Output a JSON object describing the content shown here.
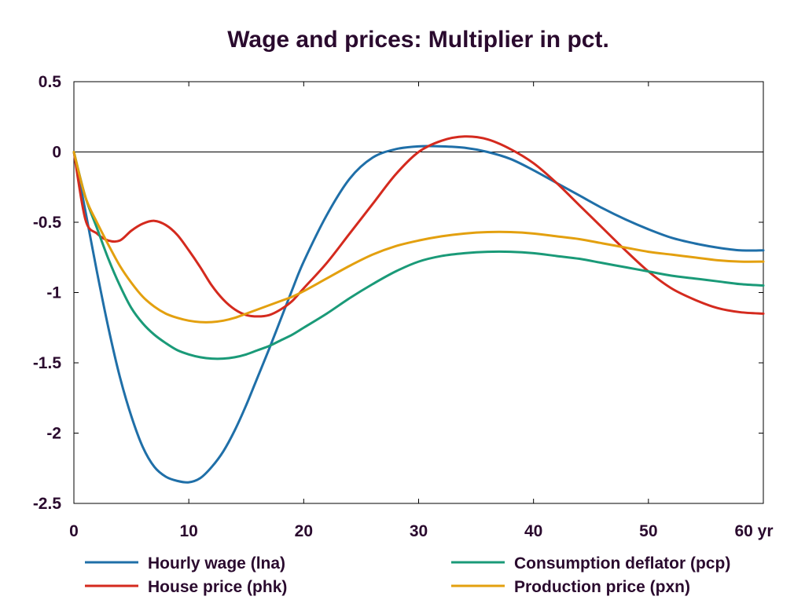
{
  "chart_data": {
    "type": "line",
    "title": "Wage and prices: Multiplier in pct.",
    "x_unit": "yr",
    "xlim": [
      0,
      60
    ],
    "ylim": [
      -2.5,
      0.5
    ],
    "x_ticks": [
      0,
      10,
      20,
      30,
      40,
      50,
      60
    ],
    "x_tick_labels": [
      "0",
      "10",
      "20",
      "30",
      "40",
      "50",
      "60 yr"
    ],
    "y_ticks": [
      0.5,
      0,
      -0.5,
      -1,
      -1.5,
      -2,
      -2.5
    ],
    "y_tick_labels": [
      "0.5",
      "0",
      "-0.5",
      "-1",
      "-1.5",
      "-2",
      "-2.5"
    ],
    "grid": false,
    "zero_line": true,
    "legend_position": "bottom",
    "series": [
      {
        "name": "Hourly wage (lna)",
        "color": "#1f6fa8",
        "x": [
          0,
          1,
          2,
          3,
          4,
          5,
          6,
          7,
          8,
          9,
          10,
          11,
          12,
          13,
          14,
          15,
          16,
          17,
          18,
          19,
          20,
          22,
          24,
          26,
          28,
          30,
          32,
          34,
          36,
          38,
          40,
          42,
          44,
          46,
          48,
          50,
          52,
          54,
          56,
          58,
          60
        ],
        "values": [
          0,
          -0.42,
          -0.85,
          -1.25,
          -1.6,
          -1.88,
          -2.1,
          -2.24,
          -2.31,
          -2.34,
          -2.35,
          -2.32,
          -2.24,
          -2.13,
          -1.98,
          -1.8,
          -1.6,
          -1.4,
          -1.19,
          -0.98,
          -0.78,
          -0.45,
          -0.19,
          -0.04,
          0.02,
          0.04,
          0.04,
          0.03,
          0.0,
          -0.05,
          -0.13,
          -0.22,
          -0.31,
          -0.4,
          -0.48,
          -0.55,
          -0.61,
          -0.65,
          -0.68,
          -0.7,
          -0.7
        ]
      },
      {
        "name": "House price (phk)",
        "color": "#d42a1e",
        "x": [
          0,
          1,
          2,
          3,
          4,
          5,
          6,
          7,
          8,
          9,
          10,
          11,
          12,
          13,
          14,
          15,
          16,
          17,
          18,
          19,
          20,
          22,
          24,
          26,
          28,
          30,
          32,
          34,
          36,
          38,
          40,
          42,
          44,
          46,
          48,
          50,
          52,
          54,
          56,
          58,
          60
        ],
        "values": [
          0,
          -0.48,
          -0.58,
          -0.63,
          -0.63,
          -0.56,
          -0.51,
          -0.49,
          -0.52,
          -0.59,
          -0.7,
          -0.82,
          -0.95,
          -1.05,
          -1.12,
          -1.16,
          -1.17,
          -1.16,
          -1.12,
          -1.06,
          -0.97,
          -0.79,
          -0.58,
          -0.37,
          -0.16,
          0.0,
          0.08,
          0.11,
          0.09,
          0.02,
          -0.08,
          -0.22,
          -0.38,
          -0.54,
          -0.7,
          -0.85,
          -0.97,
          -1.05,
          -1.11,
          -1.14,
          -1.15
        ]
      },
      {
        "name": "Consumption deflator (pcp)",
        "color": "#1a9a78",
        "x": [
          0,
          1,
          2,
          3,
          4,
          5,
          6,
          7,
          8,
          9,
          10,
          11,
          12,
          13,
          14,
          15,
          16,
          17,
          18,
          19,
          20,
          22,
          24,
          26,
          28,
          30,
          32,
          34,
          36,
          38,
          40,
          42,
          44,
          46,
          48,
          50,
          52,
          54,
          56,
          58,
          60
        ],
        "values": [
          0,
          -0.32,
          -0.54,
          -0.76,
          -0.95,
          -1.11,
          -1.22,
          -1.3,
          -1.36,
          -1.41,
          -1.44,
          -1.46,
          -1.47,
          -1.47,
          -1.46,
          -1.44,
          -1.41,
          -1.38,
          -1.34,
          -1.3,
          -1.25,
          -1.15,
          -1.04,
          -0.94,
          -0.85,
          -0.78,
          -0.74,
          -0.72,
          -0.71,
          -0.71,
          -0.72,
          -0.74,
          -0.76,
          -0.79,
          -0.82,
          -0.85,
          -0.88,
          -0.9,
          -0.92,
          -0.94,
          -0.95
        ]
      },
      {
        "name": "Production price (pxn)",
        "color": "#e3a00f",
        "x": [
          0,
          1,
          2,
          3,
          4,
          5,
          6,
          7,
          8,
          9,
          10,
          11,
          12,
          13,
          14,
          15,
          16,
          17,
          18,
          19,
          20,
          22,
          24,
          26,
          28,
          30,
          32,
          34,
          36,
          38,
          40,
          42,
          44,
          46,
          48,
          50,
          52,
          54,
          56,
          58,
          60
        ],
        "values": [
          0,
          -0.32,
          -0.5,
          -0.66,
          -0.81,
          -0.93,
          -1.03,
          -1.1,
          -1.15,
          -1.18,
          -1.2,
          -1.21,
          -1.21,
          -1.2,
          -1.18,
          -1.15,
          -1.12,
          -1.09,
          -1.06,
          -1.03,
          -0.99,
          -0.9,
          -0.81,
          -0.73,
          -0.67,
          -0.63,
          -0.6,
          -0.58,
          -0.57,
          -0.57,
          -0.58,
          -0.6,
          -0.62,
          -0.65,
          -0.68,
          -0.71,
          -0.73,
          -0.75,
          -0.77,
          -0.78,
          -0.78
        ]
      }
    ]
  }
}
